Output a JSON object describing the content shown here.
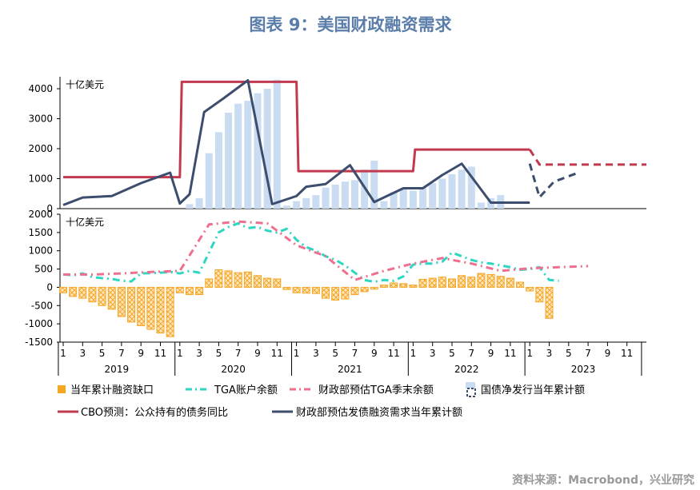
{
  "page": {
    "title": "图表 9：美国财政融资需求",
    "source": "资料来源：Macrobond，兴业研究"
  },
  "colors": {
    "title": "#5b7daa",
    "bar_light": "#c9dcf2",
    "orange": "#f5a623",
    "cyan": "#2fd6c2",
    "pink": "#ef6f8f",
    "cbo": "#c23a4f",
    "navy": "#3d4d6e"
  },
  "chart_data": [
    {
      "type": "bar+line",
      "panel": "top",
      "ylabel": "十亿美元",
      "ylim": [
        0,
        4400
      ],
      "yticks": [
        0,
        1000,
        2000,
        3000,
        4000
      ],
      "bars": {
        "name": "国债净发行当年累计额",
        "color": "#c9dcf2",
        "x": [
          13,
          14,
          15,
          16,
          17,
          18,
          19,
          20,
          21,
          22,
          23,
          24,
          25,
          26,
          27,
          28,
          29,
          30,
          31,
          32,
          33,
          34,
          35,
          36,
          37,
          38,
          39,
          40,
          41,
          42,
          43,
          44,
          45,
          46,
          47,
          48,
          49,
          50,
          51,
          52
        ],
        "values": [
          150,
          350,
          1850,
          2550,
          3200,
          3500,
          3600,
          3850,
          4000,
          4300,
          100,
          250,
          350,
          450,
          700,
          800,
          900,
          950,
          1300,
          1600,
          250,
          550,
          650,
          600,
          700,
          850,
          1000,
          1150,
          1300,
          1400,
          200,
          350,
          450,
          0,
          0,
          0,
          0,
          0,
          0,
          0
        ]
      },
      "series": [
        {
          "name": "CBO预测：公众持有的债务同比",
          "color": "#c23a4f",
          "x": [
            0,
            12,
            12.2,
            24,
            24.2,
            36,
            36.2,
            48
          ],
          "values": [
            1050,
            1050,
            4230,
            4230,
            1250,
            1250,
            1970,
            1970
          ]
        },
        {
          "name": "CBO预测：公众持有的债务同比（预测）",
          "color": "#c23a4f",
          "dashed": true,
          "x": [
            48,
            49,
            60
          ],
          "values": [
            1970,
            1470,
            1470
          ]
        },
        {
          "name": "财政部预估发债融资需求当年累计额",
          "color": "#3d4d6e",
          "x": [
            0,
            2,
            5,
            8,
            11,
            12,
            13,
            14.5,
            16.5,
            19,
            21.5,
            24,
            25,
            27,
            29.5,
            32,
            35,
            36,
            37,
            39,
            41,
            44,
            47,
            48
          ],
          "values": [
            120,
            370,
            420,
            850,
            1200,
            170,
            480,
            3220,
            3680,
            4280,
            150,
            420,
            730,
            820,
            1450,
            220,
            680,
            680,
            680,
            1120,
            1500,
            200,
            200,
            200
          ]
        },
        {
          "name": "财政部预估发债融资需求当年累计额（预测）",
          "color": "#3d4d6e",
          "dashed": true,
          "x": [
            48,
            49,
            50.5,
            53
          ],
          "values": [
            1500,
            380,
            900,
            1200
          ]
        }
      ]
    },
    {
      "type": "bar+line",
      "panel": "bottom",
      "ylabel": "十亿美元",
      "ylim": [
        -1500,
        2000
      ],
      "yticks": [
        -1500,
        -1000,
        -500,
        0,
        500,
        1000,
        1500,
        2000
      ],
      "bars": {
        "name": "当年累计融资缺口",
        "color": "#f5a623",
        "x": [
          0,
          1,
          2,
          3,
          4,
          5,
          6,
          7,
          8,
          9,
          10,
          11,
          12,
          13,
          14,
          15,
          16,
          17,
          18,
          19,
          20,
          21,
          22,
          23,
          24,
          25,
          26,
          27,
          28,
          29,
          30,
          31,
          32,
          33,
          34,
          35,
          36,
          37,
          38,
          39,
          40,
          41,
          42,
          43,
          44,
          45,
          46,
          47,
          48,
          49,
          50
        ],
        "values": [
          -150,
          -250,
          -300,
          -400,
          -500,
          -600,
          -800,
          -950,
          -1050,
          -1150,
          -1250,
          -1350,
          -150,
          -200,
          -200,
          230,
          480,
          450,
          400,
          420,
          320,
          250,
          230,
          -60,
          -150,
          -160,
          -170,
          -300,
          -350,
          -320,
          -200,
          -120,
          -50,
          60,
          120,
          100,
          60,
          220,
          250,
          280,
          230,
          320,
          280,
          380,
          350,
          300,
          250,
          140,
          -100,
          -400,
          -850
        ]
      },
      "series": [
        {
          "name": "TGA账户余额",
          "color": "#2fd6c2",
          "x": [
            0,
            1,
            2,
            3,
            4,
            5,
            6,
            7,
            8,
            9,
            10,
            11,
            12,
            13,
            14,
            15,
            16,
            17,
            18,
            19,
            20,
            21,
            22,
            23,
            24,
            25,
            26,
            27,
            28,
            29,
            30,
            31,
            32,
            33,
            34,
            35,
            36,
            37,
            38,
            39,
            40,
            41,
            42,
            43,
            44,
            45,
            46,
            47,
            48,
            49,
            50,
            51
          ],
          "values": [
            350,
            330,
            380,
            280,
            250,
            230,
            180,
            160,
            380,
            390,
            400,
            420,
            380,
            450,
            400,
            950,
            1500,
            1650,
            1750,
            1620,
            1650,
            1550,
            1500,
            1600,
            1300,
            1100,
            1000,
            850,
            750,
            600,
            400,
            200,
            150,
            200,
            180,
            300,
            620,
            650,
            650,
            700,
            950,
            850,
            750,
            680,
            650,
            600,
            550,
            480,
            500,
            550,
            200,
            180
          ]
        },
        {
          "name": "财政部预估TGA季末余额",
          "color": "#ef6f8f",
          "x": [
            0,
            3,
            6,
            9,
            12,
            15,
            18,
            21,
            24,
            27,
            30,
            33,
            36,
            39,
            42,
            45,
            48,
            51,
            54
          ],
          "values": [
            350,
            350,
            380,
            420,
            450,
            1720,
            1800,
            1750,
            1150,
            850,
            200,
            450,
            650,
            800,
            650,
            450,
            520,
            550,
            580
          ]
        }
      ],
      "legend": [
        "当年累计融资缺口",
        "TGA账户余额",
        "财政部预估TGA季末余额",
        "国债净发行当年累计额",
        "CBO预测：公众持有的债务同比",
        "财政部预估发债融资需求当年累计额"
      ]
    }
  ],
  "x_axis": {
    "tick_labels": [
      "1",
      "3",
      "5",
      "7",
      "9",
      "11",
      "1",
      "3",
      "5",
      "7",
      "9",
      "11",
      "1",
      "3",
      "5",
      "7",
      "9",
      "11",
      "1",
      "3",
      "5",
      "7",
      "9",
      "11",
      "1",
      "3",
      "5",
      "7",
      "9",
      "11"
    ],
    "years": [
      "2019",
      "2020",
      "2021",
      "2022",
      "2023"
    ]
  }
}
